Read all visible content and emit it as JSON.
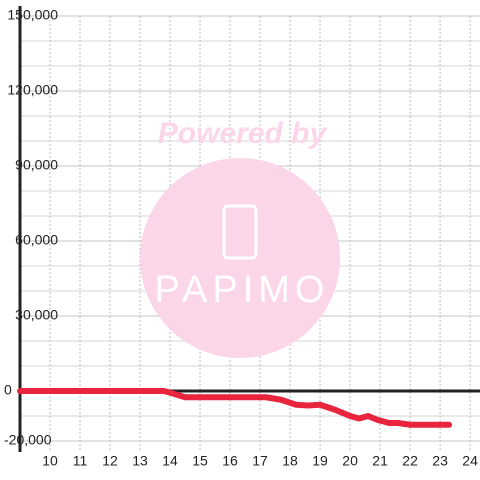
{
  "chart_data": {
    "type": "line",
    "watermark": {
      "text": "Powered by",
      "logo": "PAPIMO"
    },
    "x": [
      9,
      13.8,
      14.1,
      14.5,
      17.2,
      17.7,
      18.2,
      18.6,
      19,
      19.5,
      20,
      20.3,
      20.6,
      20.9,
      21.3,
      21.6,
      22,
      23.3
    ],
    "series": [
      {
        "color": "#e8253c",
        "values": [
          0,
          0,
          -1000,
          -2500,
          -2500,
          -3500,
          -5500,
          -5800,
          -5500,
          -7500,
          -10000,
          -11000,
          -10000,
          -11500,
          -12800,
          -12800,
          -13500,
          -13500
        ]
      }
    ],
    "xlim": [
      9,
      24.33
    ],
    "xticks": [
      10,
      11,
      12,
      13,
      14,
      15,
      16,
      17,
      18,
      19,
      20,
      21,
      22,
      23,
      24
    ],
    "ylim": [
      -20000,
      150000
    ],
    "yticks": [
      {
        "value": -20000,
        "label": "-20,000"
      },
      0,
      {
        "value": 30000,
        "label": "30,000"
      },
      {
        "value": 60000,
        "label": "60,000"
      },
      {
        "value": 90000,
        "label": "90,000"
      },
      {
        "value": 120000,
        "label": "120,000"
      },
      {
        "value": 150000,
        "label": "150,000"
      }
    ],
    "yminor": [
      -10000,
      10000,
      20000,
      40000,
      50000,
      70000,
      80000,
      100000,
      110000,
      130000,
      140000
    ],
    "grid": true
  }
}
